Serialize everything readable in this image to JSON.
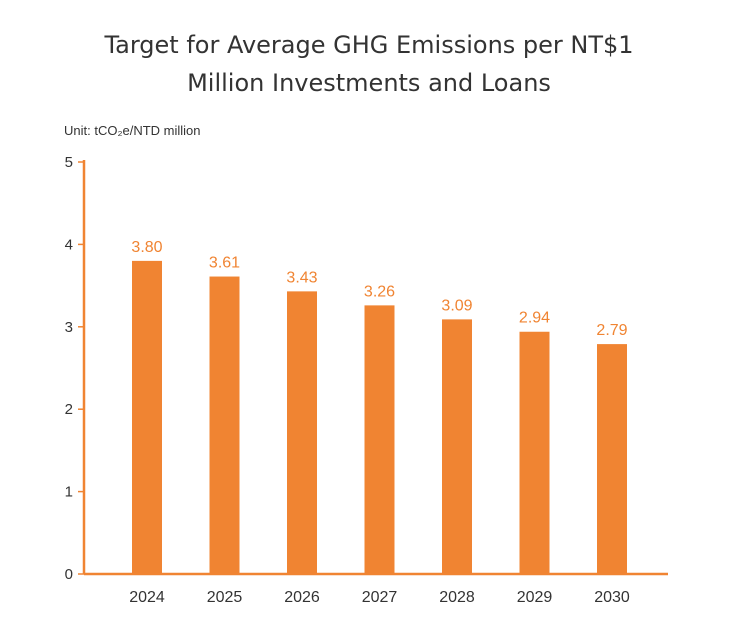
{
  "chart_data": {
    "type": "bar",
    "title_lines": [
      "Target for Average GHG Emissions per NT$1",
      "Million Investments and Loans"
    ],
    "unit_label": "Unit: tCO₂e/NTD million",
    "categories": [
      "2024",
      "2025",
      "2026",
      "2027",
      "2028",
      "2029",
      "2030"
    ],
    "values": [
      3.8,
      3.61,
      3.43,
      3.26,
      3.09,
      2.94,
      2.79
    ],
    "data_labels": [
      "3.80",
      "3.61",
      "3.43",
      "3.26",
      "3.09",
      "2.94",
      "2.79"
    ],
    "yticks": [
      "0",
      "1",
      "2",
      "3",
      "4",
      "5"
    ],
    "ylim": [
      0,
      5
    ],
    "grid": false,
    "bar_color": "#f08432",
    "axis_color": "#f08432",
    "label_color": "#f08432"
  }
}
